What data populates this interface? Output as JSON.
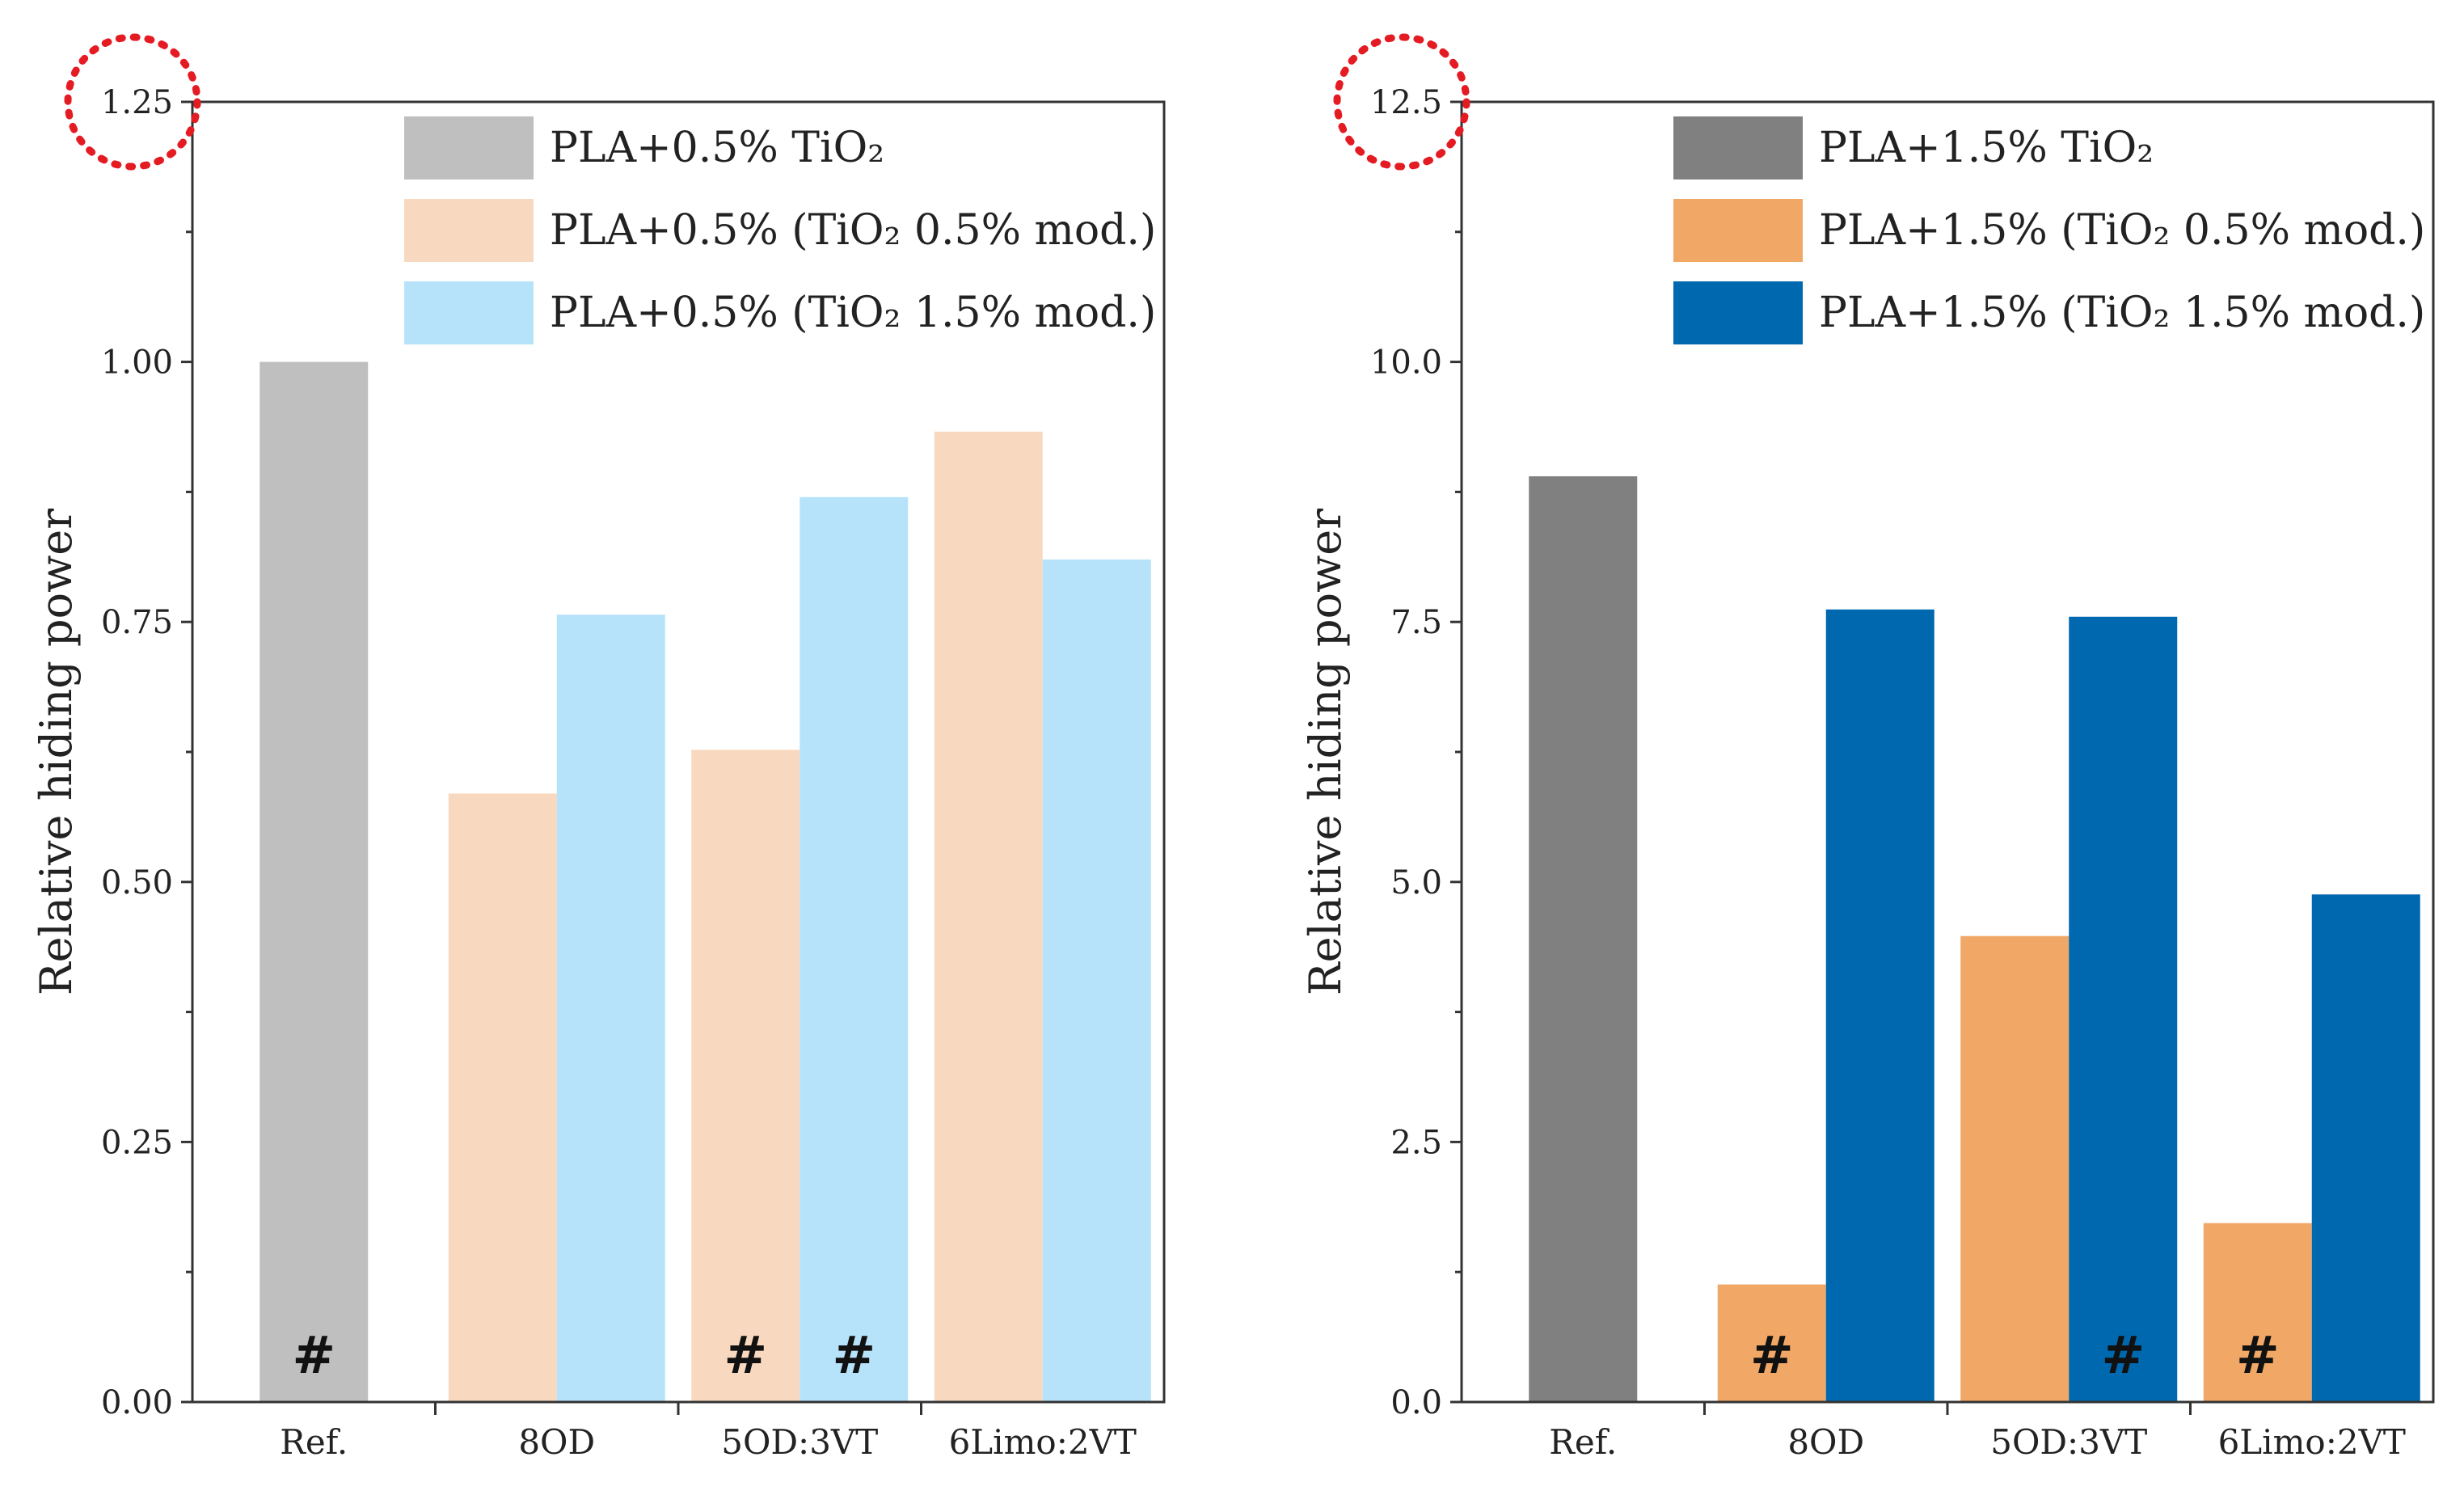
{
  "chart_data": [
    {
      "type": "bar",
      "categories": [
        "Ref.",
        "8OD",
        "5OD:3VT",
        "6Limo:2VT"
      ],
      "ylabel": "Relative hiding power",
      "ylim": [
        0,
        1.25
      ],
      "yticks": [
        "0.00",
        "0.25",
        "0.50",
        "0.75",
        "1.00",
        "1.25"
      ],
      "highlighted_tick": "1.25",
      "grid": false,
      "legend_position": "top-right",
      "series": [
        {
          "name": "PLA+0.5% TiO₂",
          "color": "#BFBFBF",
          "values": [
            1.0,
            null,
            null,
            null
          ],
          "marks": [
            "#",
            "",
            "",
            ""
          ]
        },
        {
          "name": "PLA+0.5% (TiO₂ 0.5% mod.)",
          "color": "#F8D9BF",
          "values": [
            null,
            0.585,
            0.627,
            0.933
          ],
          "marks": [
            "",
            "",
            "#",
            ""
          ]
        },
        {
          "name": "PLA+0.5% (TiO₂ 1.5% mod.)",
          "color": "#B7E3FA",
          "values": [
            null,
            0.757,
            0.87,
            0.81
          ],
          "marks": [
            "",
            "",
            "#",
            ""
          ]
        }
      ]
    },
    {
      "type": "bar",
      "categories": [
        "Ref.",
        "8OD",
        "5OD:3VT",
        "6Limo:2VT"
      ],
      "ylabel": "Relative hiding power",
      "ylim": [
        0,
        12.5
      ],
      "yticks": [
        "0.0",
        "2.5",
        "5.0",
        "7.5",
        "10.0",
        "12.5"
      ],
      "highlighted_tick": "12.5",
      "grid": false,
      "legend_position": "top-right",
      "series": [
        {
          "name": "PLA+1.5% TiO₂",
          "color": "#808080",
          "values": [
            8.9,
            null,
            null,
            null
          ],
          "marks": [
            "",
            "",
            "",
            ""
          ]
        },
        {
          "name": "PLA+1.5% (TiO₂ 0.5% mod.)",
          "color": "#F1A766",
          "values": [
            null,
            1.13,
            4.48,
            1.72
          ],
          "marks": [
            "",
            "#",
            "",
            "#"
          ]
        },
        {
          "name": "PLA+1.5% (TiO₂ 1.5% mod.)",
          "color": "#0068AE",
          "values": [
            null,
            7.62,
            7.55,
            4.88
          ],
          "marks": [
            "",
            "",
            "#",
            ""
          ]
        }
      ]
    }
  ]
}
